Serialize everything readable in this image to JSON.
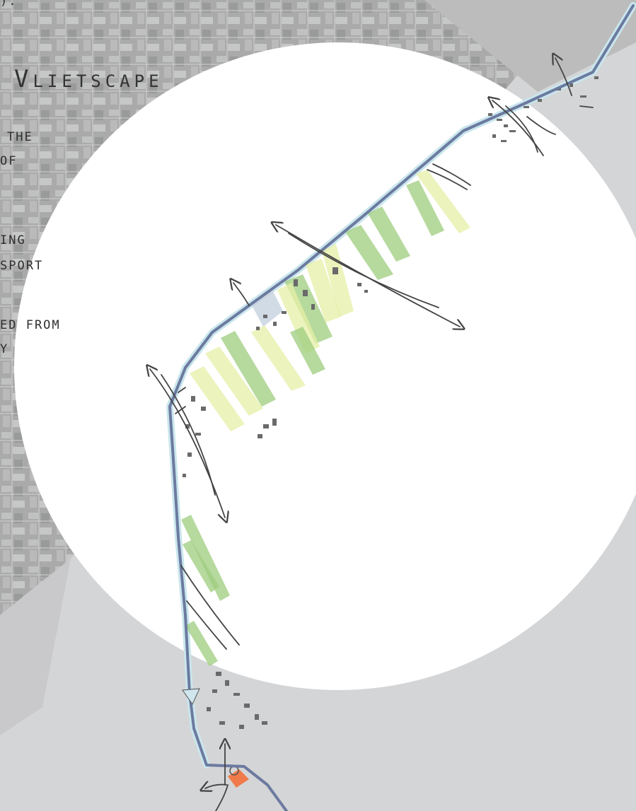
{
  "title": "Vlietscape",
  "text_fragments": [
    ").",
    "THE",
    "OF",
    "ING",
    "SPORT",
    "ED FROM",
    "Y"
  ],
  "colors": {
    "background_grey": "#d4d5d7",
    "aerial_grey": "#a9a9a9",
    "lens_white": "#ffffff",
    "canal_line": "#6c7aa0",
    "canal_water": "#bfe3ea",
    "green_strip": "#9dcc7e",
    "yellow_strip": "#e6efa6",
    "building_grey": "#6a6a6a",
    "highlight_orange": "#f07a4a"
  },
  "icons": [
    "route-arrow-icon",
    "arrow-head-icon"
  ]
}
